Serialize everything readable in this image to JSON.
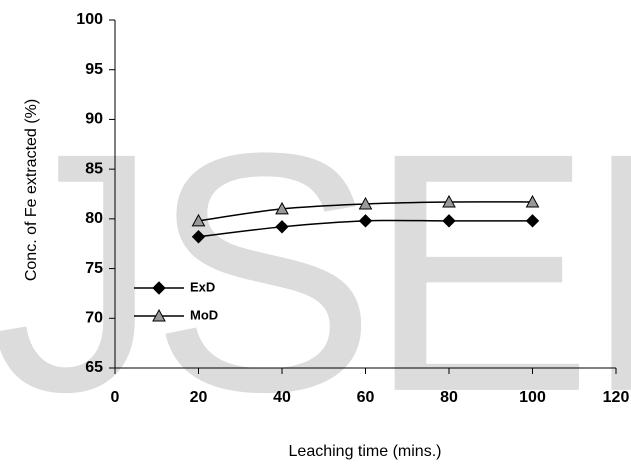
{
  "chart_data": {
    "type": "line",
    "watermark": "JSER",
    "x_label": "Leaching time (mins.)",
    "y_label": "Conc. of Fe extracted (%)",
    "x": [
      20,
      40,
      60,
      80,
      100
    ],
    "series": [
      {
        "name": "ExD",
        "color": "#000000",
        "marker": "diamond",
        "values": [
          78.2,
          79.2,
          79.8,
          79.8,
          79.8
        ]
      },
      {
        "name": "MoD",
        "color": "#999999",
        "marker": "triangle",
        "values": [
          79.8,
          81.0,
          81.5,
          81.7,
          81.7
        ]
      }
    ],
    "xlim": [
      0,
      120
    ],
    "xticks": [
      0,
      20,
      40,
      60,
      80,
      100,
      120
    ],
    "ylim": [
      65,
      100
    ],
    "yticks": [
      65,
      70,
      75,
      80,
      85,
      90,
      95,
      100
    ],
    "grid": false,
    "legend": "left"
  }
}
